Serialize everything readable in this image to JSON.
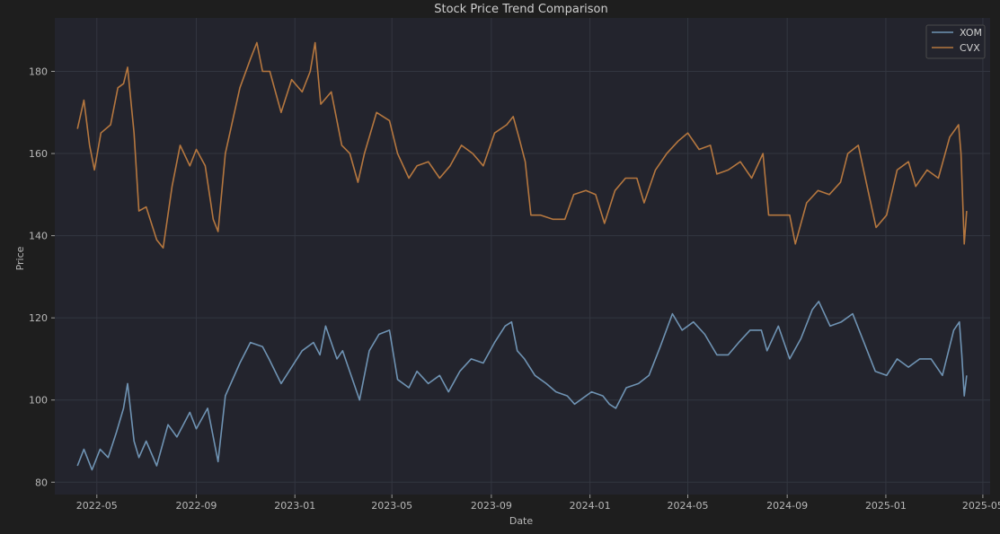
{
  "chart_data": {
    "type": "line",
    "title": "Stock Price Trend Comparison",
    "xlabel": "Date",
    "ylabel": "Price",
    "xlim": [
      "2022-03-10",
      "2025-05-10"
    ],
    "ylim": [
      77,
      193
    ],
    "grid": true,
    "legend_position": "top-right",
    "x_tick_labels": [
      "2022-05",
      "2022-09",
      "2023-01",
      "2023-05",
      "2023-09",
      "2024-01",
      "2024-05",
      "2024-09",
      "2025-01",
      "2025-05"
    ],
    "y_ticks": [
      80,
      100,
      120,
      140,
      160,
      180
    ],
    "series": [
      {
        "name": "XOM",
        "color": "#6f93b3",
        "points": [
          [
            "2022-04-07",
            84
          ],
          [
            "2022-04-15",
            88
          ],
          [
            "2022-04-25",
            83
          ],
          [
            "2022-05-05",
            88
          ],
          [
            "2022-05-15",
            86
          ],
          [
            "2022-05-25",
            92
          ],
          [
            "2022-06-03",
            98
          ],
          [
            "2022-06-08",
            104
          ],
          [
            "2022-06-16",
            90
          ],
          [
            "2022-06-22",
            86
          ],
          [
            "2022-07-01",
            90
          ],
          [
            "2022-07-14",
            84
          ],
          [
            "2022-07-28",
            94
          ],
          [
            "2022-08-08",
            91
          ],
          [
            "2022-08-24",
            97
          ],
          [
            "2022-09-01",
            93
          ],
          [
            "2022-09-15",
            98
          ],
          [
            "2022-09-28",
            85
          ],
          [
            "2022-10-07",
            101
          ],
          [
            "2022-10-25",
            109
          ],
          [
            "2022-11-07",
            114
          ],
          [
            "2022-11-22",
            113
          ],
          [
            "2022-11-30",
            110
          ],
          [
            "2022-12-15",
            104
          ],
          [
            "2022-12-28",
            108
          ],
          [
            "2023-01-10",
            112
          ],
          [
            "2023-01-24",
            114
          ],
          [
            "2023-02-01",
            111
          ],
          [
            "2023-02-08",
            118
          ],
          [
            "2023-02-22",
            110
          ],
          [
            "2023-03-01",
            112
          ],
          [
            "2023-03-15",
            104
          ],
          [
            "2023-03-22",
            100
          ],
          [
            "2023-04-03",
            112
          ],
          [
            "2023-04-15",
            116
          ],
          [
            "2023-04-28",
            117
          ],
          [
            "2023-05-08",
            105
          ],
          [
            "2023-05-22",
            103
          ],
          [
            "2023-06-01",
            107
          ],
          [
            "2023-06-15",
            104
          ],
          [
            "2023-06-29",
            106
          ],
          [
            "2023-07-10",
            102
          ],
          [
            "2023-07-24",
            107
          ],
          [
            "2023-08-07",
            110
          ],
          [
            "2023-08-22",
            109
          ],
          [
            "2023-09-05",
            114
          ],
          [
            "2023-09-18",
            118
          ],
          [
            "2023-09-26",
            119
          ],
          [
            "2023-10-03",
            112
          ],
          [
            "2023-10-12",
            110
          ],
          [
            "2023-10-25",
            106
          ],
          [
            "2023-11-08",
            104
          ],
          [
            "2023-11-20",
            102
          ],
          [
            "2023-12-04",
            101
          ],
          [
            "2023-12-13",
            99
          ],
          [
            "2024-01-03",
            102
          ],
          [
            "2024-01-17",
            101
          ],
          [
            "2024-01-25",
            99
          ],
          [
            "2024-02-02",
            98
          ],
          [
            "2024-02-15",
            103
          ],
          [
            "2024-03-01",
            104
          ],
          [
            "2024-03-14",
            106
          ],
          [
            "2024-03-28",
            113
          ],
          [
            "2024-04-12",
            121
          ],
          [
            "2024-04-24",
            117
          ],
          [
            "2024-05-08",
            119
          ],
          [
            "2024-05-22",
            116
          ],
          [
            "2024-06-06",
            111
          ],
          [
            "2024-06-20",
            111
          ],
          [
            "2024-07-03",
            114
          ],
          [
            "2024-07-17",
            117
          ],
          [
            "2024-07-31",
            117
          ],
          [
            "2024-08-07",
            112
          ],
          [
            "2024-08-21",
            118
          ],
          [
            "2024-09-04",
            110
          ],
          [
            "2024-09-18",
            115
          ],
          [
            "2024-10-02",
            122
          ],
          [
            "2024-10-10",
            124
          ],
          [
            "2024-10-24",
            118
          ],
          [
            "2024-11-07",
            119
          ],
          [
            "2024-11-21",
            121
          ],
          [
            "2024-12-05",
            114
          ],
          [
            "2024-12-19",
            107
          ],
          [
            "2025-01-02",
            106
          ],
          [
            "2025-01-15",
            110
          ],
          [
            "2025-01-29",
            108
          ],
          [
            "2025-02-12",
            110
          ],
          [
            "2025-02-26",
            110
          ],
          [
            "2025-03-12",
            106
          ],
          [
            "2025-03-26",
            117
          ],
          [
            "2025-04-02",
            119
          ],
          [
            "2025-04-05",
            111
          ],
          [
            "2025-04-08",
            101
          ],
          [
            "2025-04-11",
            106
          ]
        ]
      },
      {
        "name": "CVX",
        "color": "#b5773f",
        "points": [
          [
            "2022-04-07",
            166
          ],
          [
            "2022-04-15",
            173
          ],
          [
            "2022-04-22",
            162
          ],
          [
            "2022-04-28",
            156
          ],
          [
            "2022-05-06",
            165
          ],
          [
            "2022-05-18",
            167
          ],
          [
            "2022-05-27",
            176
          ],
          [
            "2022-06-03",
            177
          ],
          [
            "2022-06-08",
            181
          ],
          [
            "2022-06-16",
            165
          ],
          [
            "2022-06-22",
            146
          ],
          [
            "2022-07-01",
            147
          ],
          [
            "2022-07-14",
            139
          ],
          [
            "2022-07-22",
            137
          ],
          [
            "2022-08-02",
            152
          ],
          [
            "2022-08-12",
            162
          ],
          [
            "2022-08-24",
            157
          ],
          [
            "2022-09-01",
            161
          ],
          [
            "2022-09-12",
            157
          ],
          [
            "2022-09-22",
            144
          ],
          [
            "2022-09-28",
            141
          ],
          [
            "2022-10-07",
            160
          ],
          [
            "2022-10-25",
            176
          ],
          [
            "2022-11-07",
            183
          ],
          [
            "2022-11-15",
            187
          ],
          [
            "2022-11-22",
            180
          ],
          [
            "2022-12-01",
            180
          ],
          [
            "2022-12-15",
            170
          ],
          [
            "2022-12-28",
            178
          ],
          [
            "2023-01-10",
            175
          ],
          [
            "2023-01-20",
            180
          ],
          [
            "2023-01-26",
            187
          ],
          [
            "2023-02-02",
            172
          ],
          [
            "2023-02-15",
            175
          ],
          [
            "2023-02-28",
            162
          ],
          [
            "2023-03-10",
            160
          ],
          [
            "2023-03-20",
            153
          ],
          [
            "2023-03-28",
            160
          ],
          [
            "2023-04-12",
            170
          ],
          [
            "2023-04-28",
            168
          ],
          [
            "2023-05-08",
            160
          ],
          [
            "2023-05-22",
            154
          ],
          [
            "2023-06-01",
            157
          ],
          [
            "2023-06-15",
            158
          ],
          [
            "2023-06-29",
            154
          ],
          [
            "2023-07-12",
            157
          ],
          [
            "2023-07-26",
            162
          ],
          [
            "2023-08-09",
            160
          ],
          [
            "2023-08-22",
            157
          ],
          [
            "2023-09-05",
            165
          ],
          [
            "2023-09-20",
            167
          ],
          [
            "2023-09-28",
            169
          ],
          [
            "2023-10-05",
            164
          ],
          [
            "2023-10-13",
            158
          ],
          [
            "2023-10-20",
            145
          ],
          [
            "2023-11-01",
            145
          ],
          [
            "2023-11-16",
            144
          ],
          [
            "2023-12-01",
            144
          ],
          [
            "2023-12-12",
            150
          ],
          [
            "2023-12-27",
            151
          ],
          [
            "2024-01-08",
            150
          ],
          [
            "2024-01-19",
            143
          ],
          [
            "2024-02-01",
            151
          ],
          [
            "2024-02-14",
            154
          ],
          [
            "2024-02-28",
            154
          ],
          [
            "2024-03-08",
            148
          ],
          [
            "2024-03-22",
            156
          ],
          [
            "2024-04-05",
            160
          ],
          [
            "2024-04-19",
            163
          ],
          [
            "2024-05-01",
            165
          ],
          [
            "2024-05-15",
            161
          ],
          [
            "2024-05-29",
            162
          ],
          [
            "2024-06-06",
            155
          ],
          [
            "2024-06-20",
            156
          ],
          [
            "2024-07-05",
            158
          ],
          [
            "2024-07-19",
            154
          ],
          [
            "2024-08-02",
            160
          ],
          [
            "2024-08-09",
            145
          ],
          [
            "2024-08-23",
            145
          ],
          [
            "2024-09-04",
            145
          ],
          [
            "2024-09-11",
            138
          ],
          [
            "2024-09-25",
            148
          ],
          [
            "2024-10-09",
            151
          ],
          [
            "2024-10-23",
            150
          ],
          [
            "2024-11-06",
            153
          ],
          [
            "2024-11-15",
            160
          ],
          [
            "2024-11-28",
            162
          ],
          [
            "2024-12-10",
            151
          ],
          [
            "2024-12-20",
            142
          ],
          [
            "2025-01-02",
            145
          ],
          [
            "2025-01-15",
            156
          ],
          [
            "2025-01-29",
            158
          ],
          [
            "2025-02-07",
            152
          ],
          [
            "2025-02-21",
            156
          ],
          [
            "2025-03-07",
            154
          ],
          [
            "2025-03-21",
            164
          ],
          [
            "2025-04-01",
            167
          ],
          [
            "2025-04-04",
            160
          ],
          [
            "2025-04-08",
            138
          ],
          [
            "2025-04-11",
            146
          ]
        ]
      }
    ]
  }
}
